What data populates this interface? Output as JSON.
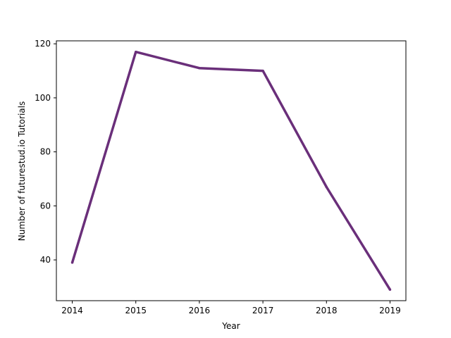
{
  "chart_data": {
    "type": "line",
    "title": "",
    "xlabel": "Year",
    "ylabel": "Number of futurestud.io Tutorials",
    "x": [
      2014,
      2015,
      2016,
      2017,
      2018,
      2019
    ],
    "series": [
      {
        "values": [
          39,
          117,
          111,
          110,
          67,
          29
        ]
      }
    ],
    "x_ticks": [
      "2014",
      "2015",
      "2016",
      "2017",
      "2018",
      "2019"
    ],
    "y_ticks": [
      "40",
      "60",
      "80",
      "100",
      "120"
    ],
    "xlim": [
      2013.75,
      2019.25
    ],
    "ylim": [
      24.9,
      121.1
    ],
    "grid": false,
    "line_color": "#6a2f7a"
  }
}
